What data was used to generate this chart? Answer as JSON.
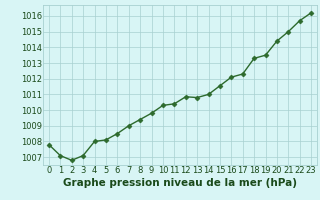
{
  "x": [
    0,
    1,
    2,
    3,
    4,
    5,
    6,
    7,
    8,
    9,
    10,
    11,
    12,
    13,
    14,
    15,
    16,
    17,
    18,
    19,
    20,
    21,
    22,
    23
  ],
  "y": [
    1007.8,
    1007.1,
    1006.8,
    1007.1,
    1008.0,
    1008.1,
    1008.5,
    1009.0,
    1009.4,
    1009.8,
    1010.3,
    1010.4,
    1010.85,
    1010.8,
    1011.0,
    1011.55,
    1012.1,
    1012.3,
    1013.3,
    1013.5,
    1014.4,
    1015.0,
    1015.7,
    1016.2
  ],
  "line_color": "#2d6a2d",
  "marker": "D",
  "marker_size": 2.5,
  "linewidth": 1.0,
  "bg_color": "#d8f5f5",
  "grid_color": "#a8d0d0",
  "xlabel": "Graphe pression niveau de la mer (hPa)",
  "xlabel_fontsize": 7.5,
  "xlabel_color": "#1a4a1a",
  "tick_label_color": "#1a4a1a",
  "tick_fontsize": 6.0,
  "ylim": [
    1006.5,
    1016.7
  ],
  "yticks": [
    1007,
    1008,
    1009,
    1010,
    1011,
    1012,
    1013,
    1014,
    1015,
    1016
  ],
  "xticks": [
    0,
    1,
    2,
    3,
    4,
    5,
    6,
    7,
    8,
    9,
    10,
    11,
    12,
    13,
    14,
    15,
    16,
    17,
    18,
    19,
    20,
    21,
    22,
    23
  ],
  "xlim": [
    -0.5,
    23.5
  ]
}
